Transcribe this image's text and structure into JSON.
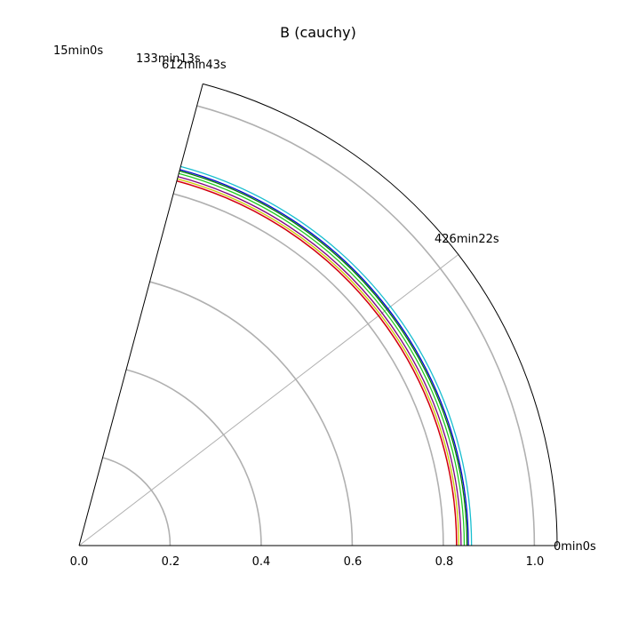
{
  "chart_data": {
    "type": "line",
    "projection": "polar",
    "title": "B (cauchy)",
    "theta_range_deg": [
      0,
      75
    ],
    "r_range": [
      0.0,
      1.05
    ],
    "radial_ticks": [
      "0.0",
      "0.2",
      "0.4",
      "0.6",
      "0.8",
      "1.0"
    ],
    "radial_tick_values": [
      0.0,
      0.2,
      0.4,
      0.6,
      0.8,
      1.0
    ],
    "gridline_radii": [
      0.2,
      0.4,
      0.6,
      0.8,
      1.0
    ],
    "angular_tick_labels": [
      "0min0s",
      "426min22s",
      "612min43s",
      "133min13s",
      "15min0s"
    ],
    "angular_gridline_deg": [
      37.5
    ],
    "grid": true,
    "series": [
      {
        "color": "#17becf",
        "r": 0.862
      },
      {
        "color": "#0000cc",
        "r": 0.855
      },
      {
        "color": "#008000",
        "r": 0.852
      },
      {
        "color": "#22cc22",
        "r": 0.846
      },
      {
        "color": "#800080",
        "r": 0.839
      },
      {
        "color": "#cccc00",
        "r": 0.834
      },
      {
        "color": "#ff69b4",
        "r": 0.83
      },
      {
        "color": "#cc0000",
        "r": 0.829
      }
    ]
  }
}
